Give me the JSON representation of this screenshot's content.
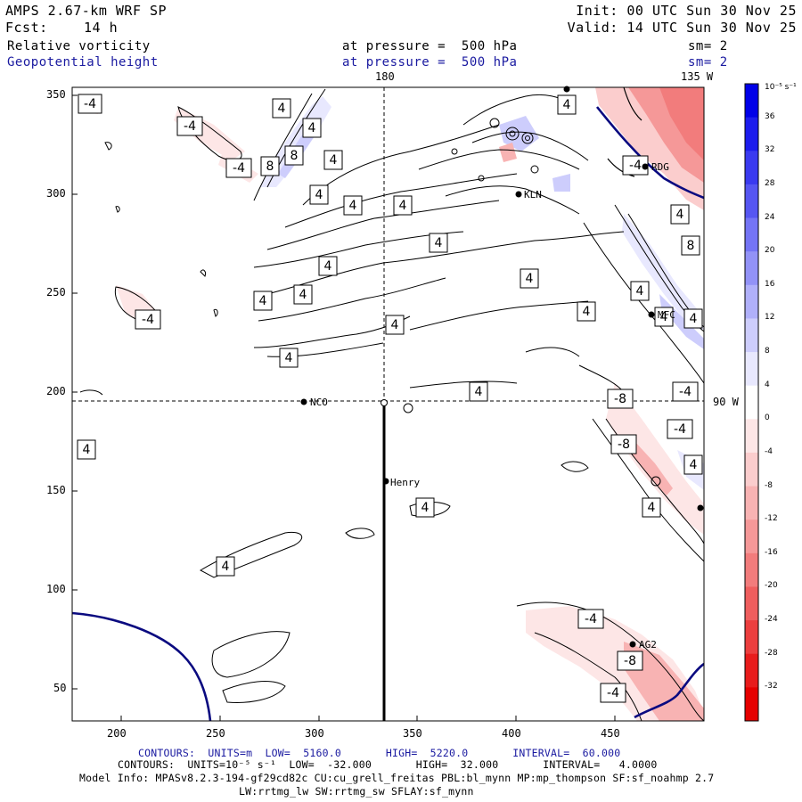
{
  "header": {
    "model": "AMPS 2.67-km WRF SP",
    "fcst_label": "Fcst:",
    "fcst_value": "14 h",
    "init": "Init: 00 UTC Sun 30 Nov 25",
    "valid": "Valid: 14 UTC Sun 30 Nov 25",
    "field1": "Relative vorticity",
    "field1_level": "at pressure =  500 hPa",
    "field1_sm": "sm= 2",
    "field2": "Geopotential height",
    "field2_level": "at pressure =  500 hPa",
    "field2_sm": "sm= 2"
  },
  "map": {
    "meridian_180": "180",
    "meridian_135w": "135 W",
    "meridian_90w": "90 W",
    "x_ticks": [
      "200",
      "250",
      "300",
      "350",
      "400",
      "450"
    ],
    "y_ticks": [
      "350",
      "300",
      "250",
      "200",
      "150",
      "100",
      "50"
    ],
    "stations": [
      "NCO",
      "Henry",
      "KLN",
      "RDG",
      "MFC",
      "AG2"
    ],
    "contour_labels": [
      "-4",
      "4",
      "4",
      "-4",
      "-4",
      "8",
      "8",
      "4",
      "4",
      "4",
      "4",
      "4",
      "4",
      "4",
      "4",
      "4",
      "4",
      "4",
      "-4",
      "4",
      "4",
      "4",
      "4",
      "8",
      "4",
      "-4",
      "-8",
      "-4",
      "4",
      "4",
      "-8",
      "-4",
      "4",
      "4",
      "4",
      "4",
      "4",
      "-4",
      "-8",
      "-4"
    ]
  },
  "colorbar": {
    "unit": "10⁻⁵ s⁻¹",
    "ticks": [
      "36",
      "32",
      "28",
      "24",
      "20",
      "16",
      "12",
      "8",
      "4",
      "0",
      "-4",
      "-8",
      "-12",
      "-16",
      "-20",
      "-24",
      "-28",
      "-32"
    ],
    "colors_top_to_bottom": [
      "#0000e8",
      "#1c1ced",
      "#3a3af0",
      "#5656f2",
      "#7474f5",
      "#9292f7",
      "#b0b0fa",
      "#cdcdfc",
      "#e8e8fe",
      "#ffffff",
      "#fde6e6",
      "#fbcdcd",
      "#f8b3b3",
      "#f59898",
      "#f27c7c",
      "#ef5e5e",
      "#ec3e3e",
      "#e81c1c",
      "#e50000"
    ]
  },
  "footer": {
    "contours1": "CONTOURS:  UNITS=m  LOW=  5160.0       HIGH=  5220.0       INTERVAL=  60.000",
    "contours2": "CONTOURS:  UNITS=10⁻⁵ s⁻¹  LOW=  -32.000       HIGH=  32.000       INTERVAL=   4.0000",
    "model_info": "Model Info: MPASv8.2.3-194-gf29cd82c CU:cu_grell_freitas PBL:bl_mynn MP:mp_thompson SF:sf_noahmp 2.7",
    "model_info2": "LW:rrtmg_lw SW:rrtmg_sw SFLAY:sf_mynn"
  }
}
